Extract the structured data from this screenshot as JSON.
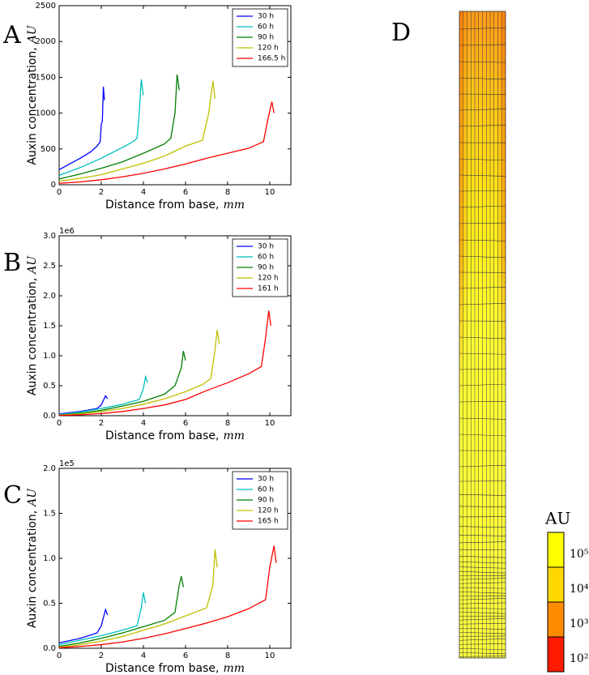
{
  "chart_data": [
    {
      "type": "line",
      "panel_label": "A",
      "xlabel": {
        "text": "Distance from base,",
        "unit": "mm"
      },
      "ylabel": {
        "text": "Auxin concentration,",
        "unit": "AU"
      },
      "xlim": [
        0,
        11
      ],
      "xticks": [
        0,
        2,
        4,
        6,
        8,
        10
      ],
      "ylim": [
        0,
        2500
      ],
      "yticks": [
        0,
        500,
        1000,
        1500,
        2000,
        2500
      ],
      "legend": "upper right",
      "series": [
        {
          "name": "30 h",
          "color": "#0000ff",
          "x": [
            0,
            0.5,
            1,
            1.5,
            1.8,
            1.95,
            2.0,
            2.05,
            2.1,
            2.15
          ],
          "values": [
            210,
            290,
            370,
            460,
            540,
            600,
            850,
            880,
            1370,
            1180
          ]
        },
        {
          "name": "60 h",
          "color": "#00bfbf",
          "x": [
            0,
            1,
            2,
            3,
            3.5,
            3.7,
            3.8,
            3.9,
            4.0
          ],
          "values": [
            130,
            240,
            370,
            520,
            600,
            650,
            1000,
            1470,
            1250
          ]
        },
        {
          "name": "90 h",
          "color": "#007f00",
          "x": [
            0,
            1,
            2,
            3,
            4,
            5,
            5.3,
            5.5,
            5.6,
            5.7
          ],
          "values": [
            80,
            150,
            230,
            320,
            440,
            570,
            650,
            1000,
            1540,
            1320
          ]
        },
        {
          "name": "120 h",
          "color": "#bfbf00",
          "x": [
            0,
            1,
            2,
            3,
            4,
            5,
            6,
            6.8,
            7.1,
            7.3,
            7.4
          ],
          "values": [
            50,
            90,
            140,
            220,
            300,
            400,
            540,
            620,
            1000,
            1450,
            1200
          ]
        },
        {
          "name": "166.5 h",
          "color": "#ff0000",
          "x": [
            0,
            1,
            2,
            3,
            4,
            5,
            6,
            7,
            8,
            9,
            9.7,
            9.9,
            10.1,
            10.2
          ],
          "values": [
            20,
            40,
            70,
            110,
            160,
            220,
            290,
            370,
            440,
            510,
            600,
            900,
            1160,
            1000
          ]
        }
      ]
    },
    {
      "type": "line",
      "panel_label": "B",
      "xlabel": {
        "text": "Distance from base,",
        "unit": "mm"
      },
      "ylabel": {
        "text": "Auxin concentration,",
        "unit": "AU"
      },
      "xlim": [
        0,
        11
      ],
      "xticks": [
        0,
        2,
        4,
        6,
        8,
        10
      ],
      "ylim": [
        0,
        3000000
      ],
      "yoffset_label": "1e6",
      "yticks": [
        {
          "value": 0,
          "label": "0.0"
        },
        {
          "value": 500000,
          "label": "0.5"
        },
        {
          "value": 1000000,
          "label": "1.0"
        },
        {
          "value": 1500000,
          "label": "1.5"
        },
        {
          "value": 2000000,
          "label": "2.0"
        },
        {
          "value": 2500000,
          "label": "2.5"
        },
        {
          "value": 3000000,
          "label": "3.0"
        }
      ],
      "legend": "upper right",
      "series": [
        {
          "name": "30 h",
          "color": "#0000ff",
          "x": [
            0,
            1,
            1.8,
            2.0,
            2.2,
            2.3
          ],
          "values": [
            30000,
            70000,
            120000,
            180000,
            330000,
            280000
          ]
        },
        {
          "name": "60 h",
          "color": "#00bfbf",
          "x": [
            0,
            1,
            2,
            3,
            3.8,
            4.0,
            4.1,
            4.2
          ],
          "values": [
            20000,
            60000,
            120000,
            190000,
            270000,
            450000,
            650000,
            550000
          ]
        },
        {
          "name": "90 h",
          "color": "#007f00",
          "x": [
            0,
            1,
            2,
            3,
            4,
            5,
            5.5,
            5.8,
            5.9,
            6.0
          ],
          "values": [
            10000,
            40000,
            90000,
            160000,
            240000,
            360000,
            500000,
            800000,
            1080000,
            920000
          ]
        },
        {
          "name": "120 h",
          "color": "#bfbf00",
          "x": [
            0,
            1,
            2,
            3,
            4,
            5,
            6,
            6.8,
            7.2,
            7.4,
            7.5,
            7.6
          ],
          "values": [
            10000,
            30000,
            70000,
            120000,
            190000,
            280000,
            400000,
            520000,
            620000,
            1100000,
            1430000,
            1200000
          ]
        },
        {
          "name": "161 h",
          "color": "#ff0000",
          "x": [
            0,
            1,
            2,
            3,
            4,
            5,
            6,
            7,
            8,
            9,
            9.6,
            9.8,
            9.95,
            10.05
          ],
          "values": [
            5000,
            15000,
            35000,
            70000,
            120000,
            180000,
            270000,
            420000,
            550000,
            700000,
            820000,
            1300000,
            1750000,
            1500000
          ]
        }
      ]
    },
    {
      "type": "line",
      "panel_label": "C",
      "xlabel": {
        "text": "Distance from base,",
        "unit": "mm"
      },
      "ylabel": {
        "text": "Auxin concentration,",
        "unit": "AU"
      },
      "xlim": [
        0,
        11
      ],
      "xticks": [
        0,
        2,
        4,
        6,
        8,
        10
      ],
      "ylim": [
        0,
        200000
      ],
      "yoffset_label": "1e5",
      "yticks": [
        {
          "value": 0,
          "label": "0.0"
        },
        {
          "value": 50000,
          "label": "0.5"
        },
        {
          "value": 100000,
          "label": "1.0"
        },
        {
          "value": 150000,
          "label": "1.5"
        },
        {
          "value": 200000,
          "label": "2.0"
        }
      ],
      "legend": "upper right",
      "series": [
        {
          "name": "30 h",
          "color": "#0000ff",
          "x": [
            0,
            1,
            1.8,
            2.0,
            2.2,
            2.3
          ],
          "values": [
            6000,
            11000,
            17000,
            25000,
            43000,
            37000
          ]
        },
        {
          "name": "60 h",
          "color": "#00bfbf",
          "x": [
            0,
            1,
            2,
            3,
            3.7,
            3.9,
            4.0,
            4.1
          ],
          "values": [
            4000,
            9000,
            14000,
            20000,
            25000,
            45000,
            62000,
            50000
          ]
        },
        {
          "name": "90 h",
          "color": "#007f00",
          "x": [
            0,
            1,
            2,
            3,
            4,
            5,
            5.5,
            5.7,
            5.8,
            5.9
          ],
          "values": [
            2000,
            6000,
            11000,
            17000,
            24000,
            31000,
            40000,
            70000,
            80000,
            68000
          ]
        },
        {
          "name": "120 h",
          "color": "#bfbf00",
          "x": [
            0,
            1,
            2,
            3,
            4,
            5,
            6,
            7,
            7.3,
            7.4,
            7.5
          ],
          "values": [
            1000,
            4000,
            8000,
            13000,
            20000,
            27000,
            36000,
            45000,
            70000,
            110000,
            90000
          ]
        },
        {
          "name": "165 h",
          "color": "#ff0000",
          "x": [
            0,
            1,
            2,
            3,
            4,
            5,
            6,
            7,
            8,
            9,
            9.8,
            10.0,
            10.2,
            10.3
          ],
          "values": [
            500,
            2000,
            4000,
            7000,
            11000,
            16000,
            22000,
            28000,
            35000,
            44000,
            54000,
            90000,
            114000,
            95000
          ]
        }
      ]
    }
  ],
  "panel_d": {
    "label": "D",
    "colorbar": {
      "title": "AU",
      "labels": [
        "10⁵",
        "10⁴",
        "10³",
        "10²"
      ],
      "colors": [
        "#ffff00",
        "#ffd800",
        "#ff8c00",
        "#ff1a00"
      ]
    }
  }
}
